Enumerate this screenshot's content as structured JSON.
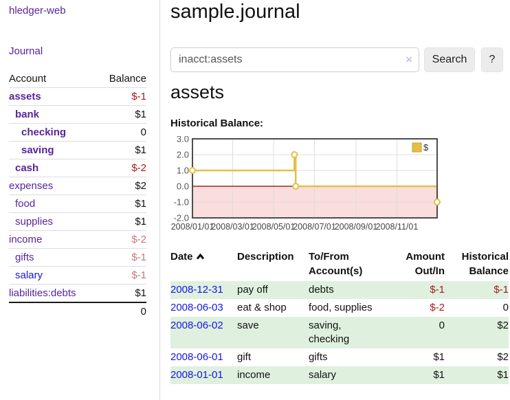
{
  "app": {
    "title": "hledger-web",
    "nav_journal": "Journal"
  },
  "sidebar": {
    "header": {
      "account": "Account",
      "balance": "Balance"
    },
    "accounts": [
      {
        "name": "assets",
        "balance": "$-1"
      },
      {
        "name": "bank",
        "balance": "$1"
      },
      {
        "name": "checking",
        "balance": "0"
      },
      {
        "name": "saving",
        "balance": "$1"
      },
      {
        "name": "cash",
        "balance": "$-2"
      },
      {
        "name": "expenses",
        "balance": "$2"
      },
      {
        "name": "food",
        "balance": "$1"
      },
      {
        "name": "supplies",
        "balance": "$1"
      },
      {
        "name": "income",
        "balance": "$-2"
      },
      {
        "name": "gifts",
        "balance": "$-1"
      },
      {
        "name": "salary",
        "balance": "$-1"
      },
      {
        "name": "liabilities:debts",
        "balance": "$1"
      }
    ],
    "total": "0"
  },
  "header": {
    "title": "sample.journal"
  },
  "search": {
    "value": "inacct:assets",
    "clear_label": "×",
    "button": "Search",
    "help": "?"
  },
  "account_page": {
    "title": "assets",
    "chart_label": "Historical Balance:"
  },
  "chart_data": {
    "type": "line",
    "step": true,
    "title": "Historical Balance",
    "legend": "$",
    "legend_position": "top-right",
    "grid": true,
    "ylim": [
      -2.0,
      3.0
    ],
    "yticks": [
      "3.0",
      "2.0",
      "1.0",
      "0.0",
      "-1.0",
      "-2.0"
    ],
    "xticks": [
      "2008/01/01",
      "2008/03/01",
      "2008/05/01",
      "2008/07/01",
      "2008/09/01",
      "2008/11/01"
    ],
    "x_range": [
      "2008-01-01",
      "2008-12-31"
    ],
    "series": [
      {
        "name": "$",
        "color": "#e5bf45",
        "points": [
          {
            "date": "2008-01-01",
            "value": 1
          },
          {
            "date": "2008-06-01",
            "value": 2
          },
          {
            "date": "2008-06-03",
            "value": 0
          },
          {
            "date": "2008-12-31",
            "value": -1
          }
        ]
      }
    ],
    "negative_region_color": "#fadddd",
    "zero_line_color": "#8b0000"
  },
  "register": {
    "columns": {
      "date": "Date",
      "description": "Description",
      "accounts": "To/From Account(s)",
      "amount": "Amount Out/In",
      "balance": "Historical Balance"
    },
    "rows": [
      {
        "date": "2008-12-31",
        "description": "pay off",
        "accounts": "debts",
        "amount": "$-1",
        "balance": "$-1"
      },
      {
        "date": "2008-06-03",
        "description": "eat & shop",
        "accounts": "food, supplies",
        "amount": "$-2",
        "balance": "0"
      },
      {
        "date": "2008-06-02",
        "description": "save",
        "accounts": "saving, checking",
        "amount": "0",
        "balance": "$2"
      },
      {
        "date": "2008-06-01",
        "description": "gift",
        "accounts": "gifts",
        "amount": "$1",
        "balance": "$2"
      },
      {
        "date": "2008-01-01",
        "description": "income",
        "accounts": "salary",
        "amount": "$1",
        "balance": "$1"
      }
    ]
  }
}
